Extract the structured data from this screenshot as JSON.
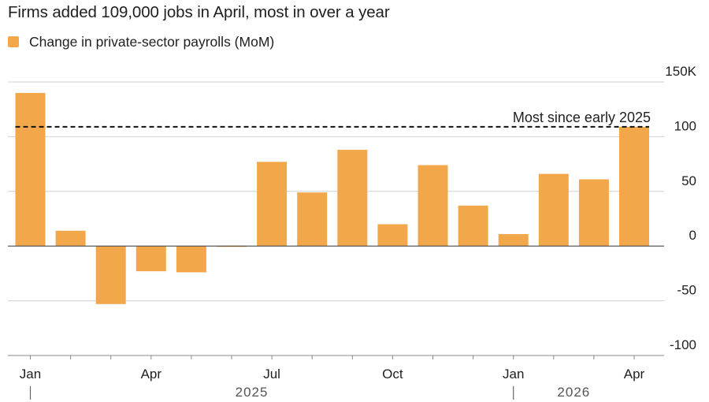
{
  "title": "Firms added 109,000 jobs in April, most in over a year",
  "legend": [
    {
      "label": "Change in private-sector payrolls (MoM)",
      "color": "#F2A84A"
    }
  ],
  "colors": {
    "bar": "#F2A84A",
    "gridline": "#D0D0D0",
    "zero_line": "#4a4a4a",
    "reference_line": "#111111",
    "text": "#1f1f1f"
  },
  "chart_data": {
    "type": "bar",
    "categories": [
      "Jan 2025",
      "Feb 2025",
      "Mar 2025",
      "Apr 2025",
      "May 2025",
      "Jun 2025",
      "Jul 2025",
      "Aug 2025",
      "Sep 2025",
      "Oct 2025",
      "Nov 2025",
      "Dec 2025",
      "Jan 2026",
      "Feb 2026",
      "Mar 2026",
      "Apr 2026"
    ],
    "series": [
      {
        "name": "Change in private-sector payrolls (MoM)",
        "values": [
          140,
          14,
          -53,
          -23,
          -24,
          -1,
          77,
          49,
          88,
          20,
          74,
          37,
          11,
          66,
          61,
          109
        ]
      }
    ],
    "title": "Firms added 109,000 jobs in April, most in over a year",
    "xlabel": "",
    "ylabel": "",
    "ylim": [
      -100,
      150
    ],
    "yticks": [
      150,
      100,
      50,
      0,
      -50,
      -100
    ],
    "ytick_labels": [
      "150K",
      "100",
      "50",
      "0",
      "-50",
      "-100"
    ],
    "y_axis_position": "right",
    "xtick_labels": [
      {
        "index": 0,
        "label": "Jan"
      },
      {
        "index": 3,
        "label": "Apr"
      },
      {
        "index": 6,
        "label": "Jul"
      },
      {
        "index": 9,
        "label": "Oct"
      },
      {
        "index": 12,
        "label": "Jan"
      },
      {
        "index": 15,
        "label": "Apr"
      }
    ],
    "year_labels": [
      {
        "label": "2025",
        "start_index": 0,
        "end_index": 11
      },
      {
        "label": "2026",
        "start_index": 12,
        "end_index": 15
      }
    ],
    "reference_line": {
      "value": 109,
      "label": "Most since early 2025",
      "style": "dashed"
    },
    "grid": true,
    "legend_position": "top-left"
  }
}
